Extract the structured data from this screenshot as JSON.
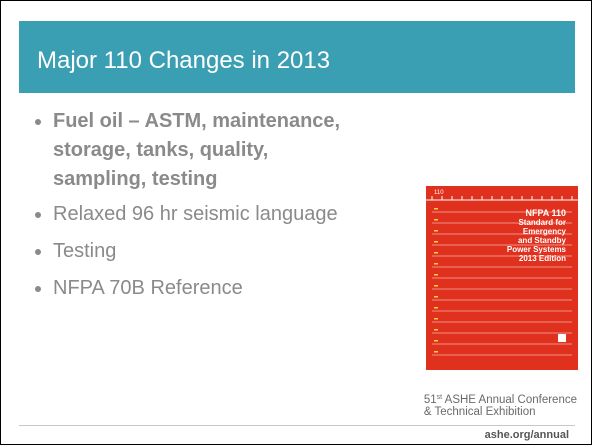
{
  "header": {
    "title": "Major 110 Changes in 2013"
  },
  "bullets": [
    {
      "text": "Fuel oil – ASTM, maintenance, storage, tanks, quality, sampling, testing",
      "bold": true
    },
    {
      "text": "Relaxed 96 hr seismic language",
      "bold": false
    },
    {
      "text": "Testing",
      "bold": false
    },
    {
      "text": "NFPA 70B Reference",
      "bold": false
    }
  ],
  "book_cover": {
    "corner_number": "110",
    "lines": [
      "NFPA 110",
      "Standard for",
      "Emergency",
      "and Standby",
      "Power Systems",
      "2013 Edition"
    ]
  },
  "footer": {
    "ordinal_number": "51",
    "ordinal_suffix": "st",
    "line1_rest": " ASHE Annual Conference",
    "line2": "& Technical Exhibition",
    "url": "ashe.org/annual"
  }
}
